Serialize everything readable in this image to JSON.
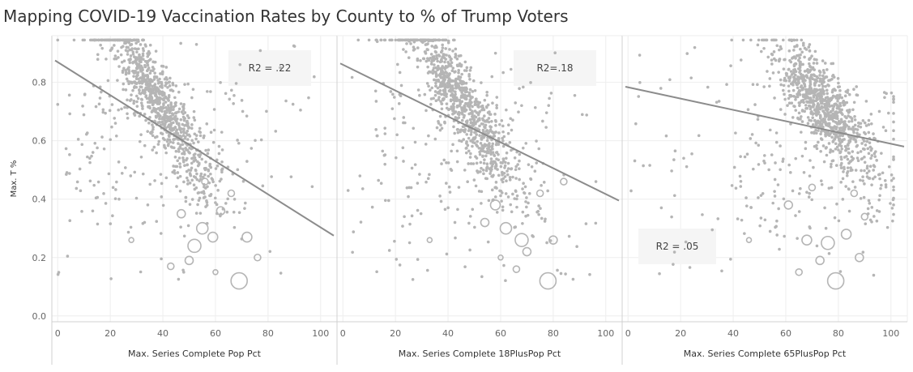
{
  "title": "Mapping COVID-19 Vaccination Rates by County to % of Trump Voters",
  "chart_data": {
    "type": "scatter",
    "title": "Mapping COVID-19 Vaccination Rates by County to % of Trump Voters",
    "ylabel": "Max. T %",
    "ylim": [
      -0.02,
      0.96
    ],
    "yticks": [
      0.0,
      0.2,
      0.4,
      0.6,
      0.8
    ],
    "yticklabels": [
      "0.0",
      "0.2",
      "0.4",
      "0.6",
      "0.8"
    ],
    "xlim": [
      -1,
      105
    ],
    "xticks": [
      0,
      20,
      40,
      60,
      80,
      100
    ],
    "xticklabels": [
      "0",
      "20",
      "40",
      "60",
      "80",
      "100"
    ],
    "grid": true,
    "colors": {
      "point": "#b5b5b5",
      "trend": "#8c8c8c",
      "box": "#f5f5f5",
      "grid": "#eeeeee",
      "border": "#d0d0d0"
    },
    "panels": [
      {
        "xlabel": "Max. Series Complete Pop Pct",
        "r2_label": "R2 = .22",
        "r2_position": "top-right",
        "trend_line": {
          "x": [
            -1,
            105
          ],
          "y": [
            0.875,
            0.275
          ]
        },
        "cluster": {
          "center_x": 38,
          "center_y": 0.74,
          "slope": -0.0085,
          "spread_x": 10
        },
        "large_circles": [
          {
            "x": 69,
            "y": 0.12,
            "size": 10
          },
          {
            "x": 52,
            "y": 0.24,
            "size": 8
          },
          {
            "x": 59,
            "y": 0.27,
            "size": 6
          },
          {
            "x": 55,
            "y": 0.3,
            "size": 7
          },
          {
            "x": 47,
            "y": 0.35,
            "size": 5
          },
          {
            "x": 62,
            "y": 0.36,
            "size": 5
          },
          {
            "x": 50,
            "y": 0.19,
            "size": 5
          },
          {
            "x": 43,
            "y": 0.17,
            "size": 4
          },
          {
            "x": 72,
            "y": 0.27,
            "size": 6
          },
          {
            "x": 66,
            "y": 0.42,
            "size": 4
          },
          {
            "x": 28,
            "y": 0.26,
            "size": 3
          },
          {
            "x": 56,
            "y": 0.46,
            "size": 4
          },
          {
            "x": 76,
            "y": 0.2,
            "size": 4
          },
          {
            "x": 60,
            "y": 0.15,
            "size": 3
          }
        ]
      },
      {
        "xlabel": "Max. Series Complete 18PlusPop Pct",
        "r2_label": "R2=.18",
        "r2_position": "top-right",
        "trend_line": {
          "x": [
            -1,
            105
          ],
          "y": [
            0.865,
            0.395
          ]
        },
        "cluster": {
          "center_x": 45,
          "center_y": 0.73,
          "slope": -0.0085,
          "spread_x": 11
        },
        "large_circles": [
          {
            "x": 78,
            "y": 0.12,
            "size": 10
          },
          {
            "x": 68,
            "y": 0.26,
            "size": 8
          },
          {
            "x": 62,
            "y": 0.3,
            "size": 7
          },
          {
            "x": 58,
            "y": 0.38,
            "size": 6
          },
          {
            "x": 70,
            "y": 0.22,
            "size": 5
          },
          {
            "x": 54,
            "y": 0.32,
            "size": 5
          },
          {
            "x": 80,
            "y": 0.26,
            "size": 5
          },
          {
            "x": 66,
            "y": 0.16,
            "size": 4
          },
          {
            "x": 75,
            "y": 0.42,
            "size": 4
          },
          {
            "x": 33,
            "y": 0.26,
            "size": 3
          },
          {
            "x": 60,
            "y": 0.2,
            "size": 3
          },
          {
            "x": 84,
            "y": 0.46,
            "size": 4
          }
        ]
      },
      {
        "xlabel": "Max. Series Complete 65PlusPop Pct",
        "r2_label": "R2 = .05",
        "r2_position": "bottom-left",
        "trend_line": {
          "x": [
            -1,
            105
          ],
          "y": [
            0.785,
            0.58
          ]
        },
        "cluster": {
          "center_x": 74,
          "center_y": 0.72,
          "slope": -0.006,
          "spread_x": 9
        },
        "large_circles": [
          {
            "x": 79,
            "y": 0.12,
            "size": 10
          },
          {
            "x": 76,
            "y": 0.25,
            "size": 8
          },
          {
            "x": 68,
            "y": 0.26,
            "size": 6
          },
          {
            "x": 83,
            "y": 0.28,
            "size": 6
          },
          {
            "x": 61,
            "y": 0.38,
            "size": 5
          },
          {
            "x": 73,
            "y": 0.19,
            "size": 5
          },
          {
            "x": 88,
            "y": 0.2,
            "size": 5
          },
          {
            "x": 65,
            "y": 0.15,
            "size": 4
          },
          {
            "x": 86,
            "y": 0.42,
            "size": 4
          },
          {
            "x": 46,
            "y": 0.26,
            "size": 3
          },
          {
            "x": 90,
            "y": 0.34,
            "size": 4
          },
          {
            "x": 70,
            "y": 0.44,
            "size": 4
          }
        ]
      }
    ],
    "points_per_panel": 1100,
    "random_seed": 7
  }
}
